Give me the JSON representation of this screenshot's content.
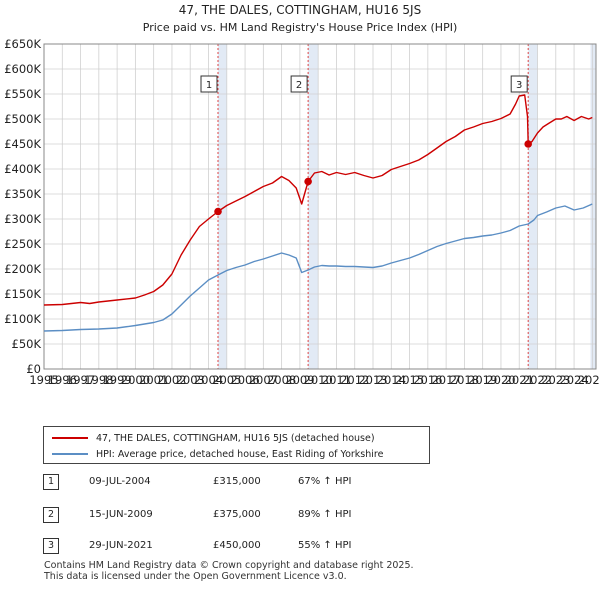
{
  "chart_data": {
    "type": "line",
    "title": "47, THE DALES, COTTINGHAM, HU16 5JS",
    "subtitle": "Price paid vs. HM Land Registry's House Price Index (HPI)",
    "xlim": [
      1995,
      2025.2
    ],
    "ylim": [
      0,
      650000
    ],
    "yticks": [
      0,
      50000,
      100000,
      150000,
      200000,
      250000,
      300000,
      350000,
      400000,
      450000,
      500000,
      550000,
      600000,
      650000
    ],
    "ytick_labels": [
      "£0",
      "£50K",
      "£100K",
      "£150K",
      "£200K",
      "£250K",
      "£300K",
      "£350K",
      "£400K",
      "£450K",
      "£500K",
      "£550K",
      "£600K",
      "£650K"
    ],
    "xticks": [
      1995,
      1996,
      1997,
      1998,
      1999,
      2000,
      2001,
      2002,
      2003,
      2004,
      2005,
      2006,
      2007,
      2008,
      2009,
      2010,
      2011,
      2012,
      2013,
      2014,
      2015,
      2016,
      2017,
      2018,
      2019,
      2020,
      2021,
      2022,
      2023,
      2024,
      2025
    ],
    "xtick_labels": [
      "1995",
      "1996",
      "1997",
      "1998",
      "1999",
      "2000",
      "2001",
      "2002",
      "2003",
      "2004",
      "2005",
      "2006",
      "2007",
      "2008",
      "2009",
      "2010",
      "2011",
      "2012",
      "2013",
      "2014",
      "2015",
      "2016",
      "2017",
      "2018",
      "2019",
      "2020",
      "2021",
      "2022",
      "2023",
      "2024",
      "2025"
    ],
    "grid": true,
    "shaded_regions": [
      [
        2004.52,
        2005.0
      ],
      [
        2009.45,
        2010.0
      ],
      [
        2021.49,
        2022.0
      ],
      [
        2024.9,
        2025.2
      ]
    ],
    "series": [
      {
        "name": "47, THE DALES, COTTINGHAM, HU16 5JS (detached house)",
        "color": "#cc0000",
        "x": [
          1995,
          1996,
          1997,
          1997.5,
          1998,
          1999,
          2000,
          2000.5,
          2001,
          2001.5,
          2002,
          2002.5,
          2003,
          2003.5,
          2004,
          2004.52,
          2005,
          2005.5,
          2006,
          2006.5,
          2007,
          2007.5,
          2008,
          2008.4,
          2008.8,
          2009.1,
          2009.45,
          2009.8,
          2010.2,
          2010.6,
          2011,
          2011.5,
          2012,
          2012.5,
          2013,
          2013.5,
          2014,
          2014.5,
          2015,
          2015.5,
          2016,
          2016.5,
          2017,
          2017.5,
          2018,
          2018.5,
          2019,
          2019.5,
          2020,
          2020.5,
          2020.8,
          2021.0,
          2021.3,
          2021.45,
          2021.49,
          2021.7,
          2022,
          2022.3,
          2022.6,
          2023,
          2023.3,
          2023.6,
          2024,
          2024.4,
          2024.8,
          2025
        ],
        "values": [
          128000,
          129000,
          133000,
          131000,
          134000,
          138000,
          142000,
          148000,
          155000,
          168000,
          190000,
          228000,
          258000,
          285000,
          300000,
          315000,
          327000,
          336000,
          345000,
          355000,
          365000,
          372000,
          385000,
          377000,
          362000,
          330000,
          375000,
          392000,
          395000,
          388000,
          393000,
          389000,
          393000,
          387000,
          382000,
          387000,
          399000,
          405000,
          411000,
          418000,
          429000,
          442000,
          455000,
          465000,
          478000,
          484000,
          491000,
          495000,
          501000,
          510000,
          530000,
          546000,
          548000,
          505000,
          450000,
          455000,
          472000,
          484000,
          491000,
          500000,
          500000,
          505000,
          497000,
          505000,
          500000,
          503000
        ]
      },
      {
        "name": "HPI: Average price, detached house, East Riding of Yorkshire",
        "color": "#5b8ec4",
        "x": [
          1995,
          1996,
          1997,
          1998,
          1999,
          2000,
          2001,
          2001.5,
          2002,
          2002.5,
          2003,
          2003.5,
          2004,
          2004.52,
          2005,
          2005.5,
          2006,
          2006.5,
          2007,
          2007.5,
          2008,
          2008.4,
          2008.8,
          2009.1,
          2009.45,
          2009.8,
          2010.2,
          2010.6,
          2011,
          2011.5,
          2012,
          2012.5,
          2013,
          2013.5,
          2014,
          2014.5,
          2015,
          2015.5,
          2016,
          2016.5,
          2017,
          2017.5,
          2018,
          2018.5,
          2019,
          2019.5,
          2020,
          2020.5,
          2021,
          2021.49,
          2021.8,
          2022,
          2022.5,
          2023,
          2023.5,
          2024,
          2024.5,
          2025
        ],
        "values": [
          76000,
          77000,
          79000,
          80000,
          82000,
          87000,
          93000,
          98000,
          110000,
          128000,
          146000,
          162000,
          178000,
          188000,
          197000,
          203000,
          208000,
          215000,
          220000,
          226000,
          232000,
          228000,
          222000,
          193000,
          198000,
          204000,
          207000,
          206000,
          206000,
          205000,
          205000,
          204000,
          203000,
          206000,
          212000,
          217000,
          222000,
          229000,
          237000,
          245000,
          251000,
          256000,
          261000,
          263000,
          266000,
          268000,
          272000,
          277000,
          286000,
          290000,
          298000,
          307000,
          314000,
          322000,
          326000,
          318000,
          322000,
          330000
        ]
      }
    ],
    "markers": [
      {
        "label": "1",
        "x": 2004.52,
        "y": 315000
      },
      {
        "label": "2",
        "x": 2009.45,
        "y": 375000
      },
      {
        "label": "3",
        "x": 2021.49,
        "y": 450000
      }
    ]
  },
  "legend": {
    "property_label": "47, THE DALES, COTTINGHAM, HU16 5JS (detached house)",
    "hpi_label": "HPI: Average price, detached house, East Riding of Yorkshire",
    "property_color": "#cc0000",
    "hpi_color": "#5b8ec4"
  },
  "transactions": [
    {
      "num": "1",
      "date": "09-JUL-2004",
      "price": "£315,000",
      "hpi": "67% ↑ HPI"
    },
    {
      "num": "2",
      "date": "15-JUN-2009",
      "price": "£375,000",
      "hpi": "89% ↑ HPI"
    },
    {
      "num": "3",
      "date": "29-JUN-2021",
      "price": "£450,000",
      "hpi": "55% ↑ HPI"
    }
  ],
  "footer": {
    "line1": "Contains HM Land Registry data © Crown copyright and database right 2025.",
    "line2": "This data is licensed under the Open Government Licence v3.0."
  }
}
